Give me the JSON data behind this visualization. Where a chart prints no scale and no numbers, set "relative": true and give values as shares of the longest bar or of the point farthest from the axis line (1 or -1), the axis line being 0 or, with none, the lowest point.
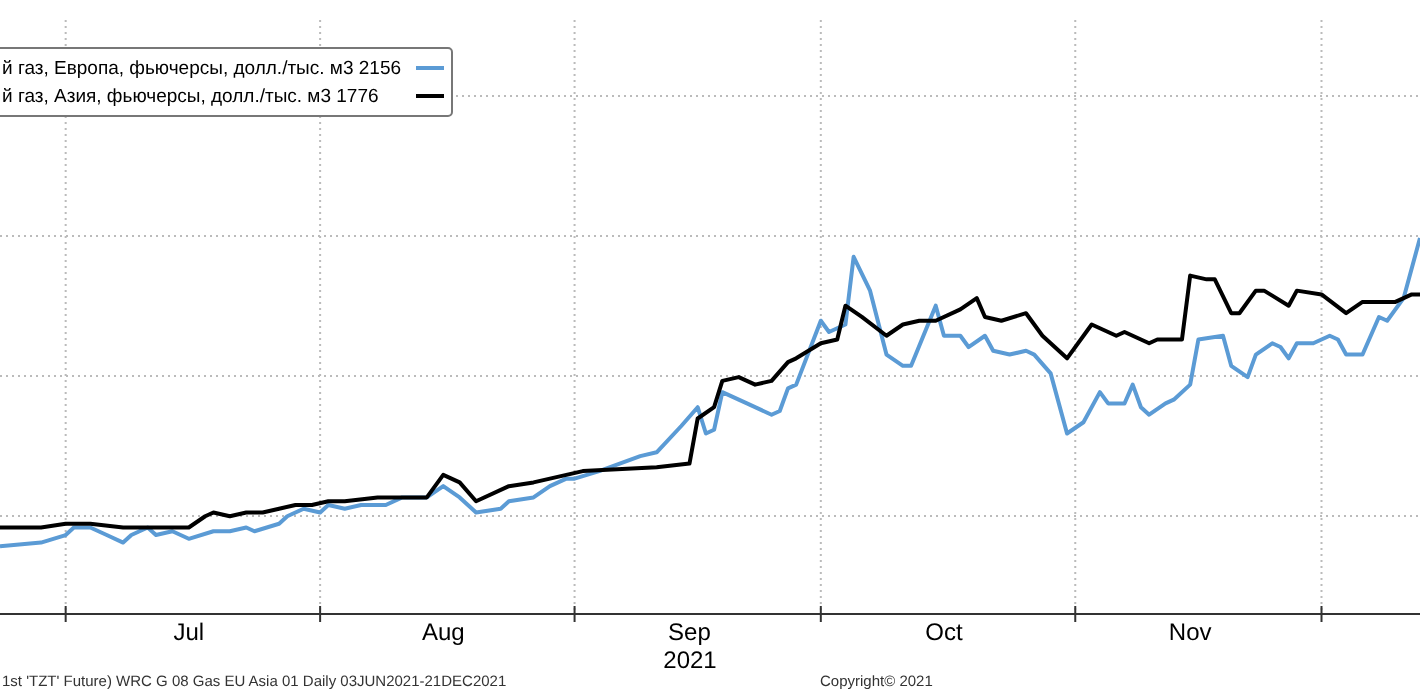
{
  "chart_data": {
    "type": "line",
    "relative": true,
    "xlabel": "2021",
    "xlim": [
      "2021-06-23",
      "2021-12-13"
    ],
    "xticks": [
      {
        "value": "2021-07-01",
        "label": null
      },
      {
        "value": "2021-08-01",
        "label": null
      },
      {
        "value": "2021-09-01",
        "label": null
      },
      {
        "value": "2021-10-01",
        "label": null
      },
      {
        "value": "2021-11-01",
        "label": null
      },
      {
        "value": "2021-12-01",
        "label": null
      },
      {
        "value": "2021-07-16",
        "label": "Jul"
      },
      {
        "value": "2021-08-16",
        "label": "Aug"
      },
      {
        "value": "2021-09-15",
        "label": "Sep"
      },
      {
        "value": "2021-10-16",
        "label": "Oct"
      },
      {
        "value": "2021-11-15",
        "label": "Nov"
      }
    ],
    "grid": true,
    "legend": "top left",
    "line_style": "solid",
    "marker": "none",
    "annotations": [
      "1st 'TZT' Future) WRC G 08 Gas EU Asia 01  Daily 03JUN2021-21DEC2021",
      "Copyright© 2021"
    ],
    "series": [
      {
        "name": "й газ, Европа, фьючерсы, долл./тыс. м3 2156",
        "color": "#5b9bd5",
        "x": [
          "2021-06-23",
          "2021-06-28",
          "2021-07-01",
          "2021-07-02",
          "2021-07-04",
          "2021-07-06",
          "2021-07-08",
          "2021-07-09",
          "2021-07-11",
          "2021-07-12",
          "2021-07-14",
          "2021-07-16",
          "2021-07-19",
          "2021-07-21",
          "2021-07-23",
          "2021-07-24",
          "2021-07-27",
          "2021-07-28",
          "2021-07-30",
          "2021-08-01",
          "2021-08-02",
          "2021-08-04",
          "2021-08-06",
          "2021-08-09",
          "2021-08-11",
          "2021-08-14",
          "2021-08-16",
          "2021-08-18",
          "2021-08-20",
          "2021-08-23",
          "2021-08-24",
          "2021-08-27",
          "2021-08-29",
          "2021-08-31",
          "2021-09-01",
          "2021-09-04",
          "2021-09-09",
          "2021-09-11",
          "2021-09-14",
          "2021-09-16",
          "2021-09-17",
          "2021-09-18",
          "2021-09-19",
          "2021-09-22",
          "2021-09-25",
          "2021-09-26",
          "2021-09-27",
          "2021-09-28",
          "2021-10-01",
          "2021-10-02",
          "2021-10-04",
          "2021-10-05",
          "2021-10-07",
          "2021-10-09",
          "2021-10-11",
          "2021-10-12",
          "2021-10-15",
          "2021-10-16",
          "2021-10-18",
          "2021-10-19",
          "2021-10-21",
          "2021-10-22",
          "2021-10-24",
          "2021-10-26",
          "2021-10-27",
          "2021-10-29",
          "2021-10-31",
          "2021-11-02",
          "2021-11-04",
          "2021-11-05",
          "2021-11-07",
          "2021-11-08",
          "2021-11-09",
          "2021-11-10",
          "2021-11-12",
          "2021-11-13",
          "2021-11-15",
          "2021-11-16",
          "2021-11-19",
          "2021-11-20",
          "2021-11-22",
          "2021-11-23",
          "2021-11-25",
          "2021-11-26",
          "2021-11-27",
          "2021-11-28",
          "2021-11-30",
          "2021-12-02",
          "2021-12-03",
          "2021-12-04",
          "2021-12-06",
          "2021-12-08",
          "2021-12-09",
          "2021-12-11",
          "2021-12-13"
        ],
        "values": [
          0.18,
          0.19,
          0.21,
          0.23,
          0.23,
          0.21,
          0.19,
          0.21,
          0.23,
          0.21,
          0.22,
          0.2,
          0.22,
          0.22,
          0.23,
          0.22,
          0.24,
          0.26,
          0.28,
          0.27,
          0.29,
          0.28,
          0.29,
          0.29,
          0.31,
          0.31,
          0.34,
          0.31,
          0.27,
          0.28,
          0.3,
          0.31,
          0.34,
          0.36,
          0.36,
          0.38,
          0.42,
          0.43,
          0.5,
          0.55,
          0.48,
          0.49,
          0.59,
          0.56,
          0.53,
          0.54,
          0.6,
          0.61,
          0.78,
          0.75,
          0.77,
          0.95,
          0.86,
          0.69,
          0.66,
          0.66,
          0.82,
          0.74,
          0.74,
          0.71,
          0.74,
          0.7,
          0.69,
          0.7,
          0.69,
          0.64,
          0.48,
          0.51,
          0.59,
          0.56,
          0.56,
          0.61,
          0.55,
          0.53,
          0.56,
          0.57,
          0.61,
          0.73,
          0.74,
          0.66,
          0.63,
          0.69,
          0.72,
          0.71,
          0.68,
          0.72,
          0.72,
          0.74,
          0.73,
          0.69,
          0.69,
          0.79,
          0.78,
          0.84,
          1
        ]
      },
      {
        "name": "й газ, Азия, фьючерсы, долл./тыс. м3 1776",
        "color": "#000000",
        "x": [
          "2021-06-23",
          "2021-06-28",
          "2021-07-01",
          "2021-07-04",
          "2021-07-08",
          "2021-07-16",
          "2021-07-18",
          "2021-07-19",
          "2021-07-21",
          "2021-07-23",
          "2021-07-25",
          "2021-07-27",
          "2021-07-29",
          "2021-07-31",
          "2021-08-02",
          "2021-08-04",
          "2021-08-08",
          "2021-08-11",
          "2021-08-14",
          "2021-08-16",
          "2021-08-18",
          "2021-08-20",
          "2021-08-24",
          "2021-08-27",
          "2021-08-29",
          "2021-08-31",
          "2021-09-02",
          "2021-09-11",
          "2021-09-15",
          "2021-09-16",
          "2021-09-18",
          "2021-09-19",
          "2021-09-21",
          "2021-09-23",
          "2021-09-25",
          "2021-09-27",
          "2021-09-28",
          "2021-10-01",
          "2021-10-03",
          "2021-10-04",
          "2021-10-06",
          "2021-10-09",
          "2021-10-11",
          "2021-10-13",
          "2021-10-15",
          "2021-10-18",
          "2021-10-20",
          "2021-10-21",
          "2021-10-23",
          "2021-10-26",
          "2021-10-28",
          "2021-10-31",
          "2021-11-03",
          "2021-11-06",
          "2021-11-07",
          "2021-11-10",
          "2021-11-11",
          "2021-11-14",
          "2021-11-15",
          "2021-11-17",
          "2021-11-18",
          "2021-11-20",
          "2021-11-21",
          "2021-11-23",
          "2021-11-24",
          "2021-11-27",
          "2021-11-28",
          "2021-12-01",
          "2021-12-04",
          "2021-12-06",
          "2021-12-10",
          "2021-12-12",
          "2021-12-13"
        ],
        "values": [
          0.23,
          0.23,
          0.24,
          0.24,
          0.23,
          0.23,
          0.26,
          0.27,
          0.26,
          0.27,
          0.27,
          0.28,
          0.29,
          0.29,
          0.3,
          0.3,
          0.31,
          0.31,
          0.31,
          0.37,
          0.35,
          0.3,
          0.34,
          0.35,
          0.36,
          0.37,
          0.38,
          0.39,
          0.4,
          0.52,
          0.55,
          0.62,
          0.63,
          0.61,
          0.62,
          0.67,
          0.68,
          0.72,
          0.73,
          0.82,
          0.79,
          0.74,
          0.77,
          0.78,
          0.78,
          0.81,
          0.84,
          0.79,
          0.78,
          0.8,
          0.74,
          0.68,
          0.77,
          0.74,
          0.75,
          0.72,
          0.73,
          0.73,
          0.9,
          0.89,
          0.89,
          0.8,
          0.8,
          0.86,
          0.86,
          0.82,
          0.86,
          0.85,
          0.8,
          0.83,
          0.83,
          0.85,
          0.85
        ]
      }
    ]
  }
}
